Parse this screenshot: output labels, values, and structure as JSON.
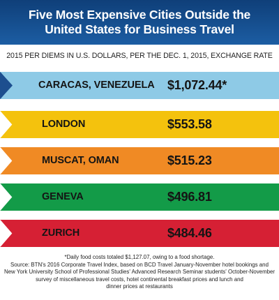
{
  "header": {
    "title_line1": "Five Most Expensive Cities Outside the",
    "title_line2": "United States for Business Travel"
  },
  "subtitle": "2015 PER DIEMS IN U.S. DOLLARS, PER THE DEC. 1, 2015, EXCHANGE RATE",
  "chart_data": {
    "type": "table",
    "title": "Five Most Expensive Cities Outside the United States for Business Travel",
    "subtitle": "2015 PER DIEMS IN U.S. DOLLARS, PER THE DEC. 1, 2015, EXCHANGE RATE",
    "categories": [
      "CARACAS, VENEZUELA",
      "LONDON",
      "MUSCAT, OMAN",
      "GENEVA",
      "ZURICH"
    ],
    "values": [
      1072.44,
      553.58,
      515.23,
      496.81,
      484.46
    ],
    "value_labels": [
      "$1,072.44*",
      "$553.58",
      "$515.23",
      "$496.81",
      "$484.46"
    ],
    "colors": [
      "#8ecae6",
      "#f4c20d",
      "#f08a24",
      "#139b48",
      "#d62034"
    ],
    "arrow_color": "#1d4f8f"
  },
  "footnotes": [
    "*Daily food costs totaled $1,127.07, owing to a food shortage.",
    "Source: BTN's 2016 Corporate Travel Index, based on BCD Travel January-November hotel bookings and",
    "New York University School of Professional Studies' Advanced Research Seminar students' October-November",
    "survey of miscellaneous travel costs, hotel continental breakfast prices and lunch and",
    "dinner prices at restaurants"
  ]
}
